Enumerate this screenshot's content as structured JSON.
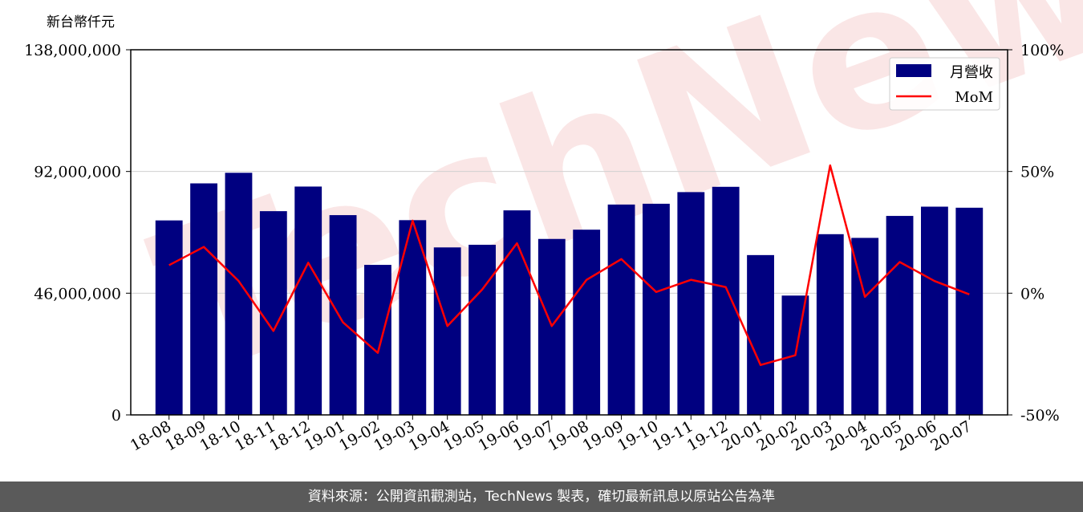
{
  "chart_data": {
    "type": "bar",
    "ylabel": "新台幣仟元",
    "categories": [
      "18-08",
      "18-09",
      "18-10",
      "18-11",
      "18-12",
      "19-01",
      "19-02",
      "19-03",
      "19-04",
      "19-05",
      "19-06",
      "19-07",
      "19-08",
      "19-09",
      "19-10",
      "19-11",
      "19-12",
      "20-01",
      "20-02",
      "20-03",
      "20-04",
      "20-05",
      "20-06",
      "20-07"
    ],
    "series": [
      {
        "name": "月營收",
        "type": "bar",
        "axis": "left",
        "color": "#000080",
        "values": [
          73500000,
          87500000,
          91500000,
          77000000,
          86300000,
          75500000,
          56700000,
          73600000,
          63300000,
          64300000,
          77300000,
          66500000,
          70000000,
          79500000,
          79800000,
          84200000,
          86200000,
          60400000,
          45100000,
          68300000,
          66900000,
          75200000,
          78700000,
          78300000
        ]
      },
      {
        "name": "MoM",
        "type": "line",
        "axis": "right",
        "color": "#ff0000",
        "values": [
          11.5,
          19.0,
          5.0,
          -15.5,
          12.5,
          -12.0,
          -24.5,
          29.8,
          -13.5,
          1.5,
          20.5,
          -13.5,
          5.5,
          14.0,
          0.5,
          5.5,
          2.5,
          -29.5,
          -25.5,
          52.5,
          -1.5,
          12.8,
          5.0,
          -0.5
        ]
      }
    ],
    "y_left": {
      "range": [
        0,
        138000000
      ],
      "ticks": [
        "0",
        "46,000,000",
        "92,000,000",
        "138,000,000"
      ]
    },
    "y_right": {
      "range": [
        -50,
        100
      ],
      "ticks": [
        "-50%",
        "0%",
        "50%",
        "100%"
      ]
    },
    "grid": "horizontal",
    "legend_position": "top-right",
    "watermark": "TechNews"
  },
  "footer": {
    "source_text": "資料來源：公開資訊觀測站，TechNews 製表，確切最新訊息以原站公告為準"
  }
}
